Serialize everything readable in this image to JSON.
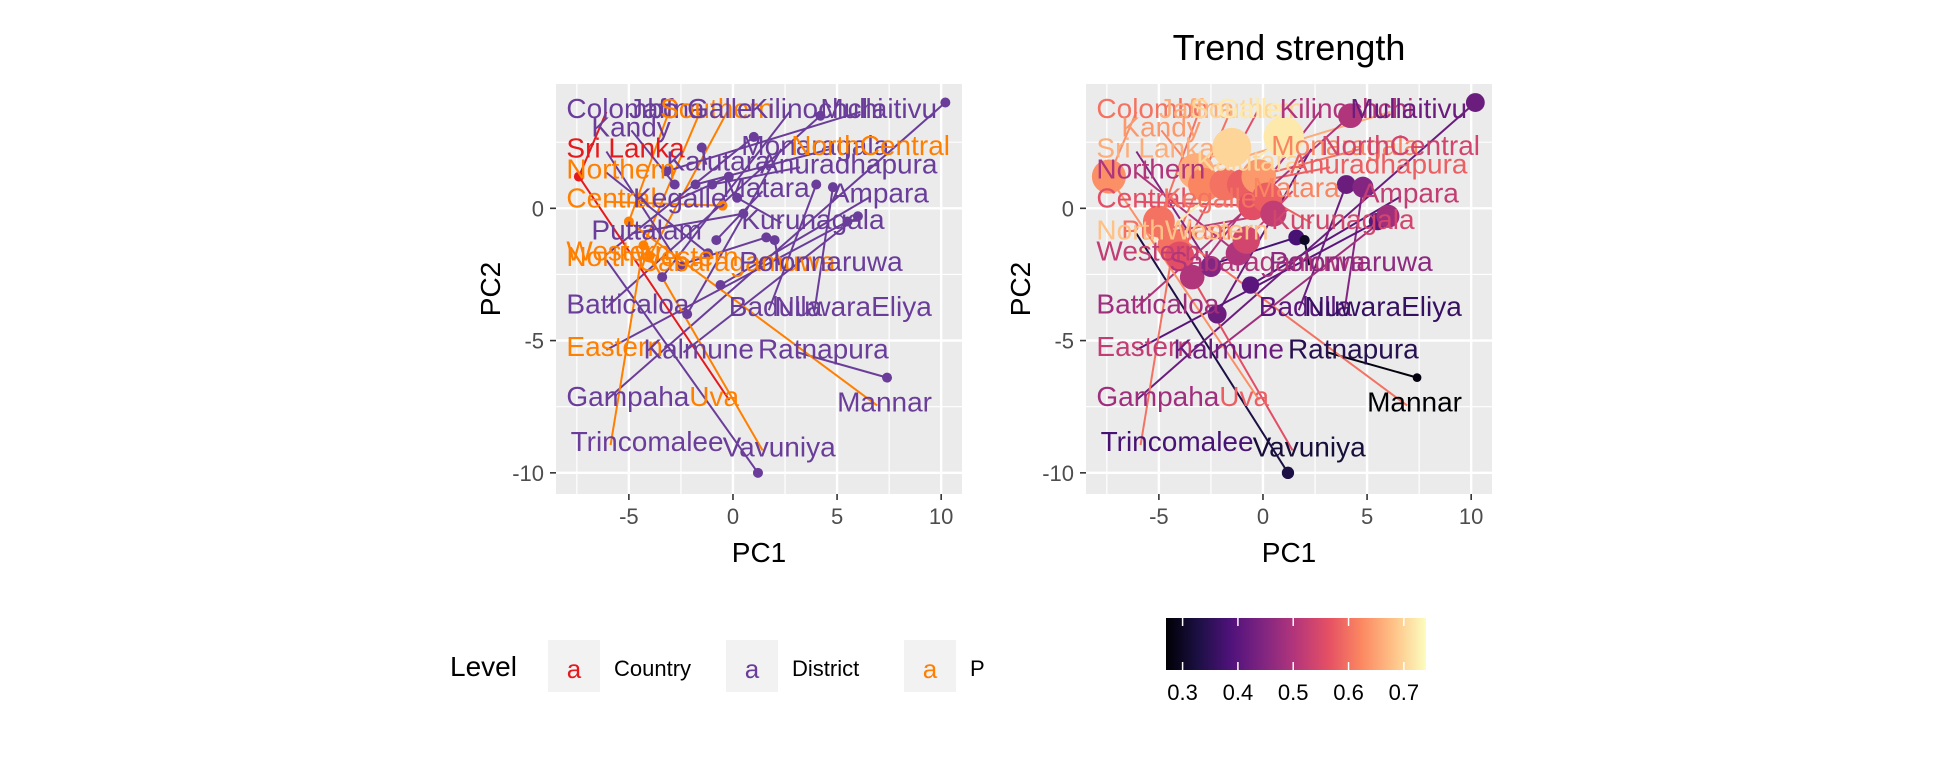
{
  "chart_data": [
    {
      "type": "scatter",
      "title": "",
      "xlabel": "PC1",
      "ylabel": "PC2",
      "xlim": [
        -8.5,
        11
      ],
      "ylim": [
        -10.8,
        4.7
      ],
      "xticks": [
        -5,
        0,
        5,
        10
      ],
      "yticks": [
        -10,
        -5,
        0
      ],
      "grid": true,
      "color_by": "Level",
      "legend": {
        "title": "Level",
        "position": "bottom",
        "entries": [
          {
            "label": "Country",
            "color": "#E41A1C"
          },
          {
            "label": "District",
            "color": "#6A3D9A"
          },
          {
            "label": "P",
            "color": "#FF7F00"
          }
        ]
      },
      "points": [
        {
          "x": -7.4,
          "y": 1.2,
          "level": "Country"
        },
        {
          "x": -5.0,
          "y": -0.5,
          "level": "P"
        },
        {
          "x": -4.3,
          "y": -1.4,
          "level": "P"
        },
        {
          "x": -4.0,
          "y": -1.8,
          "level": "P"
        },
        {
          "x": -3.4,
          "y": -2.6,
          "level": "District"
        },
        {
          "x": -3.2,
          "y": 1.4,
          "level": "District"
        },
        {
          "x": -2.8,
          "y": 0.9,
          "level": "District"
        },
        {
          "x": -2.5,
          "y": -2.2,
          "level": "District"
        },
        {
          "x": -2.2,
          "y": -4.0,
          "level": "District"
        },
        {
          "x": -1.8,
          "y": 0.9,
          "level": "District"
        },
        {
          "x": -1.5,
          "y": 2.3,
          "level": "District"
        },
        {
          "x": -1.2,
          "y": -1.7,
          "level": "District"
        },
        {
          "x": -1.0,
          "y": 0.9,
          "level": "District"
        },
        {
          "x": -0.8,
          "y": -1.2,
          "level": "District"
        },
        {
          "x": -0.6,
          "y": -2.9,
          "level": "District"
        },
        {
          "x": -0.5,
          "y": 0.1,
          "level": "P"
        },
        {
          "x": -0.2,
          "y": 1.2,
          "level": "District"
        },
        {
          "x": 0.2,
          "y": 0.4,
          "level": "District"
        },
        {
          "x": 0.5,
          "y": -0.2,
          "level": "District"
        },
        {
          "x": 1.0,
          "y": 2.7,
          "level": "District"
        },
        {
          "x": 1.2,
          "y": -10.0,
          "level": "District"
        },
        {
          "x": 1.6,
          "y": -1.1,
          "level": "District"
        },
        {
          "x": 2.0,
          "y": -1.2,
          "level": "District"
        },
        {
          "x": 4.2,
          "y": 3.5,
          "level": "District"
        },
        {
          "x": 4.0,
          "y": 0.9,
          "level": "District"
        },
        {
          "x": 4.8,
          "y": 0.8,
          "level": "District"
        },
        {
          "x": 5.5,
          "y": -0.5,
          "level": "District"
        },
        {
          "x": 6.0,
          "y": -0.3,
          "level": "District"
        },
        {
          "x": 7.4,
          "y": -6.4,
          "level": "District"
        },
        {
          "x": 10.2,
          "y": 4.0,
          "level": "District"
        }
      ],
      "labels": [
        {
          "text": "Colombo",
          "x": -8.0,
          "y": 3.8,
          "level": "District"
        },
        {
          "text": "Jaffna",
          "x": -5.0,
          "y": 3.8,
          "level": "District"
        },
        {
          "text": "Southern",
          "x": -3.5,
          "y": 3.8,
          "level": "P"
        },
        {
          "text": "Galle",
          "x": -2.2,
          "y": 3.8,
          "level": "District"
        },
        {
          "text": "Kilinochchi",
          "x": 0.8,
          "y": 3.8,
          "level": "District"
        },
        {
          "text": "Mullaitivu",
          "x": 4.2,
          "y": 3.8,
          "level": "District"
        },
        {
          "text": "Kandy",
          "x": -6.8,
          "y": 3.1,
          "level": "District"
        },
        {
          "text": "Sri Lanka",
          "x": -8.0,
          "y": 2.3,
          "level": "Country"
        },
        {
          "text": "Monaragala",
          "x": 0.4,
          "y": 2.4,
          "level": "District"
        },
        {
          "text": "NorthCentral",
          "x": 2.8,
          "y": 2.4,
          "level": "P"
        },
        {
          "text": "Kalutara",
          "x": -3.2,
          "y": 1.8,
          "level": "District"
        },
        {
          "text": "Northern",
          "x": -8.0,
          "y": 1.5,
          "level": "P"
        },
        {
          "text": "Anuradhapura",
          "x": 1.3,
          "y": 1.7,
          "level": "District"
        },
        {
          "text": "Matara",
          "x": -0.5,
          "y": 0.8,
          "level": "District"
        },
        {
          "text": "Ampara",
          "x": 4.7,
          "y": 0.6,
          "level": "District"
        },
        {
          "text": "Central",
          "x": -8.0,
          "y": 0.4,
          "level": "P"
        },
        {
          "text": "Kegalle",
          "x": -4.8,
          "y": 0.4,
          "level": "District"
        },
        {
          "text": "Kurunagala",
          "x": 0.4,
          "y": -0.4,
          "level": "District"
        },
        {
          "text": "Puttalam",
          "x": -6.8,
          "y": -0.8,
          "level": "District"
        },
        {
          "text": "Western",
          "x": -8.0,
          "y": -1.6,
          "level": "P"
        },
        {
          "text": "NorthWestern",
          "x": -8.0,
          "y": -1.8,
          "level": "P"
        },
        {
          "text": "Sabaragamuwa",
          "x": -4.5,
          "y": -2.0,
          "level": "P"
        },
        {
          "text": "Polonnaruwa",
          "x": 0.3,
          "y": -2.0,
          "level": "District"
        },
        {
          "text": "Batticaloa",
          "x": -8.0,
          "y": -3.6,
          "level": "District"
        },
        {
          "text": "Badulla",
          "x": -0.2,
          "y": -3.7,
          "level": "District"
        },
        {
          "text": "NuwaraEliya",
          "x": 2.0,
          "y": -3.7,
          "level": "District"
        },
        {
          "text": "Eastern",
          "x": -8.0,
          "y": -5.2,
          "level": "P"
        },
        {
          "text": "Kalmune",
          "x": -4.3,
          "y": -5.3,
          "level": "District"
        },
        {
          "text": "Ratnapura",
          "x": 1.2,
          "y": -5.3,
          "level": "District"
        },
        {
          "text": "Gampaha",
          "x": -8.0,
          "y": -7.1,
          "level": "District"
        },
        {
          "text": "Uva",
          "x": -2.1,
          "y": -7.1,
          "level": "P"
        },
        {
          "text": "Mannar",
          "x": 5.0,
          "y": -7.3,
          "level": "District"
        },
        {
          "text": "Trincomalee",
          "x": -7.8,
          "y": -8.8,
          "level": "District"
        },
        {
          "text": "Vavuniya",
          "x": -0.5,
          "y": -9.0,
          "level": "District"
        }
      ]
    },
    {
      "type": "scatter",
      "title": "Trend strength",
      "xlabel": "PC1",
      "ylabel": "PC2",
      "xlim": [
        -8.5,
        11
      ],
      "ylim": [
        -10.8,
        4.7
      ],
      "xticks": [
        -5,
        0,
        5,
        10
      ],
      "yticks": [
        -10,
        -5,
        0
      ],
      "grid": true,
      "color_by": "Trend strength",
      "size_by": "Trend strength",
      "colorbar": {
        "position": "bottom",
        "range": [
          0.27,
          0.74
        ],
        "ticks": [
          0.3,
          0.4,
          0.5,
          0.6,
          0.7
        ],
        "palette": "magma"
      },
      "points": [
        {
          "x": -7.4,
          "y": 1.2,
          "trend_strength": 0.63
        },
        {
          "x": -5.0,
          "y": -0.5,
          "trend_strength": 0.6
        },
        {
          "x": -4.3,
          "y": -1.4,
          "trend_strength": 0.6
        },
        {
          "x": -4.0,
          "y": -1.8,
          "trend_strength": 0.56
        },
        {
          "x": -3.4,
          "y": -2.6,
          "trend_strength": 0.5
        },
        {
          "x": -3.2,
          "y": 1.4,
          "trend_strength": 0.66
        },
        {
          "x": -2.8,
          "y": 0.9,
          "trend_strength": 0.62
        },
        {
          "x": -2.5,
          "y": -2.2,
          "trend_strength": 0.45
        },
        {
          "x": -2.2,
          "y": -4.0,
          "trend_strength": 0.42
        },
        {
          "x": -1.8,
          "y": 0.9,
          "trend_strength": 0.6
        },
        {
          "x": -1.5,
          "y": 2.3,
          "trend_strength": 0.7
        },
        {
          "x": -1.2,
          "y": -1.7,
          "trend_strength": 0.5
        },
        {
          "x": -1.0,
          "y": 0.9,
          "trend_strength": 0.58
        },
        {
          "x": -0.8,
          "y": -1.2,
          "trend_strength": 0.54
        },
        {
          "x": -0.6,
          "y": -2.9,
          "trend_strength": 0.4
        },
        {
          "x": -0.5,
          "y": 0.1,
          "trend_strength": 0.56
        },
        {
          "x": -0.2,
          "y": 1.2,
          "trend_strength": 0.64
        },
        {
          "x": 0.2,
          "y": 0.4,
          "trend_strength": 0.58
        },
        {
          "x": 0.5,
          "y": -0.2,
          "trend_strength": 0.52
        },
        {
          "x": 1.0,
          "y": 2.7,
          "trend_strength": 0.72
        },
        {
          "x": 1.2,
          "y": -10.0,
          "trend_strength": 0.33
        },
        {
          "x": 1.6,
          "y": -1.1,
          "trend_strength": 0.38
        },
        {
          "x": 2.0,
          "y": -1.2,
          "trend_strength": 0.3
        },
        {
          "x": 4.2,
          "y": 3.5,
          "trend_strength": 0.5
        },
        {
          "x": 4.0,
          "y": 0.9,
          "trend_strength": 0.42
        },
        {
          "x": 4.8,
          "y": 0.8,
          "trend_strength": 0.45
        },
        {
          "x": 5.5,
          "y": -0.5,
          "trend_strength": 0.4
        },
        {
          "x": 6.0,
          "y": -0.3,
          "trend_strength": 0.48
        },
        {
          "x": 7.4,
          "y": -6.4,
          "trend_strength": 0.28
        },
        {
          "x": 10.2,
          "y": 4.0,
          "trend_strength": 0.42
        }
      ],
      "labels": [
        {
          "text": "Colombo",
          "x": -8.0,
          "y": 3.8,
          "trend_strength": 0.6
        },
        {
          "text": "Jaffna",
          "x": -5.0,
          "y": 3.8,
          "trend_strength": 0.66
        },
        {
          "text": "Southern",
          "x": -3.5,
          "y": 3.8,
          "trend_strength": 0.7
        },
        {
          "text": "Galle",
          "x": -2.2,
          "y": 3.8,
          "trend_strength": 0.72
        },
        {
          "text": "Kilinochchi",
          "x": 0.8,
          "y": 3.8,
          "trend_strength": 0.5
        },
        {
          "text": "Mullaitivu",
          "x": 4.2,
          "y": 3.8,
          "trend_strength": 0.42
        },
        {
          "text": "Kandy",
          "x": -6.8,
          "y": 3.1,
          "trend_strength": 0.64
        },
        {
          "text": "Sri Lanka",
          "x": -8.0,
          "y": 2.3,
          "trend_strength": 0.66
        },
        {
          "text": "Monaragala",
          "x": 0.4,
          "y": 2.4,
          "trend_strength": 0.62
        },
        {
          "text": "NorthCentral",
          "x": 2.8,
          "y": 2.4,
          "trend_strength": 0.54
        },
        {
          "text": "Kalutara",
          "x": -3.2,
          "y": 1.8,
          "trend_strength": 0.7
        },
        {
          "text": "Northern",
          "x": -8.0,
          "y": 1.5,
          "trend_strength": 0.5
        },
        {
          "text": "Anuradhapura",
          "x": 1.3,
          "y": 1.7,
          "trend_strength": 0.58
        },
        {
          "text": "Matara",
          "x": -0.5,
          "y": 0.8,
          "trend_strength": 0.62
        },
        {
          "text": "Ampara",
          "x": 4.7,
          "y": 0.6,
          "trend_strength": 0.52
        },
        {
          "text": "Central",
          "x": -8.0,
          "y": 0.4,
          "trend_strength": 0.56
        },
        {
          "text": "Kegalle",
          "x": -4.8,
          "y": 0.4,
          "trend_strength": 0.6
        },
        {
          "text": "Kurunagala",
          "x": 0.4,
          "y": -0.4,
          "trend_strength": 0.54
        },
        {
          "text": "Puttalam",
          "x": -6.8,
          "y": -0.8,
          "trend_strength": 0.6
        },
        {
          "text": "Western",
          "x": -8.0,
          "y": -1.6,
          "trend_strength": 0.52
        },
        {
          "text": "NorthWestern",
          "x": -8.0,
          "y": -0.8,
          "trend_strength": 0.68
        },
        {
          "text": "Sabaragamuwa",
          "x": -4.5,
          "y": -2.0,
          "trend_strength": 0.5
        },
        {
          "text": "Polonnaruwa",
          "x": 0.3,
          "y": -2.0,
          "trend_strength": 0.46
        },
        {
          "text": "Batticaloa",
          "x": -8.0,
          "y": -3.6,
          "trend_strength": 0.48
        },
        {
          "text": "Badulla",
          "x": -0.2,
          "y": -3.7,
          "trend_strength": 0.4
        },
        {
          "text": "NuwaraEliya",
          "x": 2.0,
          "y": -3.7,
          "trend_strength": 0.36
        },
        {
          "text": "Eastern",
          "x": -8.0,
          "y": -5.2,
          "trend_strength": 0.52
        },
        {
          "text": "Kalmune",
          "x": -4.3,
          "y": -5.3,
          "trend_strength": 0.42
        },
        {
          "text": "Ratnapura",
          "x": 1.2,
          "y": -5.3,
          "trend_strength": 0.34
        },
        {
          "text": "Gampaha",
          "x": -8.0,
          "y": -7.1,
          "trend_strength": 0.48
        },
        {
          "text": "Uva",
          "x": -2.1,
          "y": -7.1,
          "trend_strength": 0.58
        },
        {
          "text": "Mannar",
          "x": 5.0,
          "y": -7.3,
          "trend_strength": 0.27
        },
        {
          "text": "Trincomalee",
          "x": -7.8,
          "y": -8.8,
          "trend_strength": 0.38
        },
        {
          "text": "Vavuniya",
          "x": -0.5,
          "y": -9.0,
          "trend_strength": 0.32
        }
      ]
    }
  ]
}
